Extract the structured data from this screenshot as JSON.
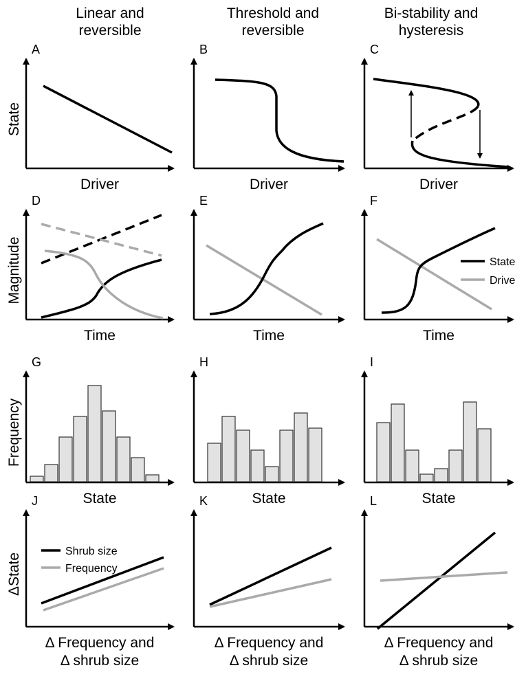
{
  "columns": [
    {
      "title": [
        "Linear and",
        "reversible"
      ]
    },
    {
      "title": [
        "Threshold and",
        "reversible"
      ]
    },
    {
      "title": [
        "Bi-stability and",
        "hysteresis"
      ]
    }
  ],
  "rows": [
    {
      "y_label": "State"
    },
    {
      "y_label": "Magnitude"
    },
    {
      "y_label": "Frequency"
    },
    {
      "y_label": "ΔState"
    }
  ],
  "panels": [
    {
      "letter": "A",
      "x_label": [
        "Driver"
      ]
    },
    {
      "letter": "B",
      "x_label": [
        "Driver"
      ]
    },
    {
      "letter": "C",
      "x_label": [
        "Driver"
      ]
    },
    {
      "letter": "D",
      "x_label": [
        "Time"
      ]
    },
    {
      "letter": "E",
      "x_label": [
        "Time"
      ]
    },
    {
      "letter": "F",
      "x_label": [
        "Time"
      ]
    },
    {
      "letter": "G",
      "x_label": [
        "State"
      ]
    },
    {
      "letter": "H",
      "x_label": [
        "State"
      ]
    },
    {
      "letter": "I",
      "x_label": [
        "State"
      ]
    },
    {
      "letter": "J",
      "x_label": [
        "Δ Frequency and",
        "Δ shrub size"
      ]
    },
    {
      "letter": "K",
      "x_label": [
        "Δ Frequency and",
        "Δ shrub size"
      ]
    },
    {
      "letter": "L",
      "x_label": [
        "Δ Frequency and",
        "Δ shrub size"
      ]
    }
  ],
  "legend_f": [
    "State",
    "Driver"
  ],
  "legend_j": [
    "Shrub size",
    "Frequency"
  ]
}
